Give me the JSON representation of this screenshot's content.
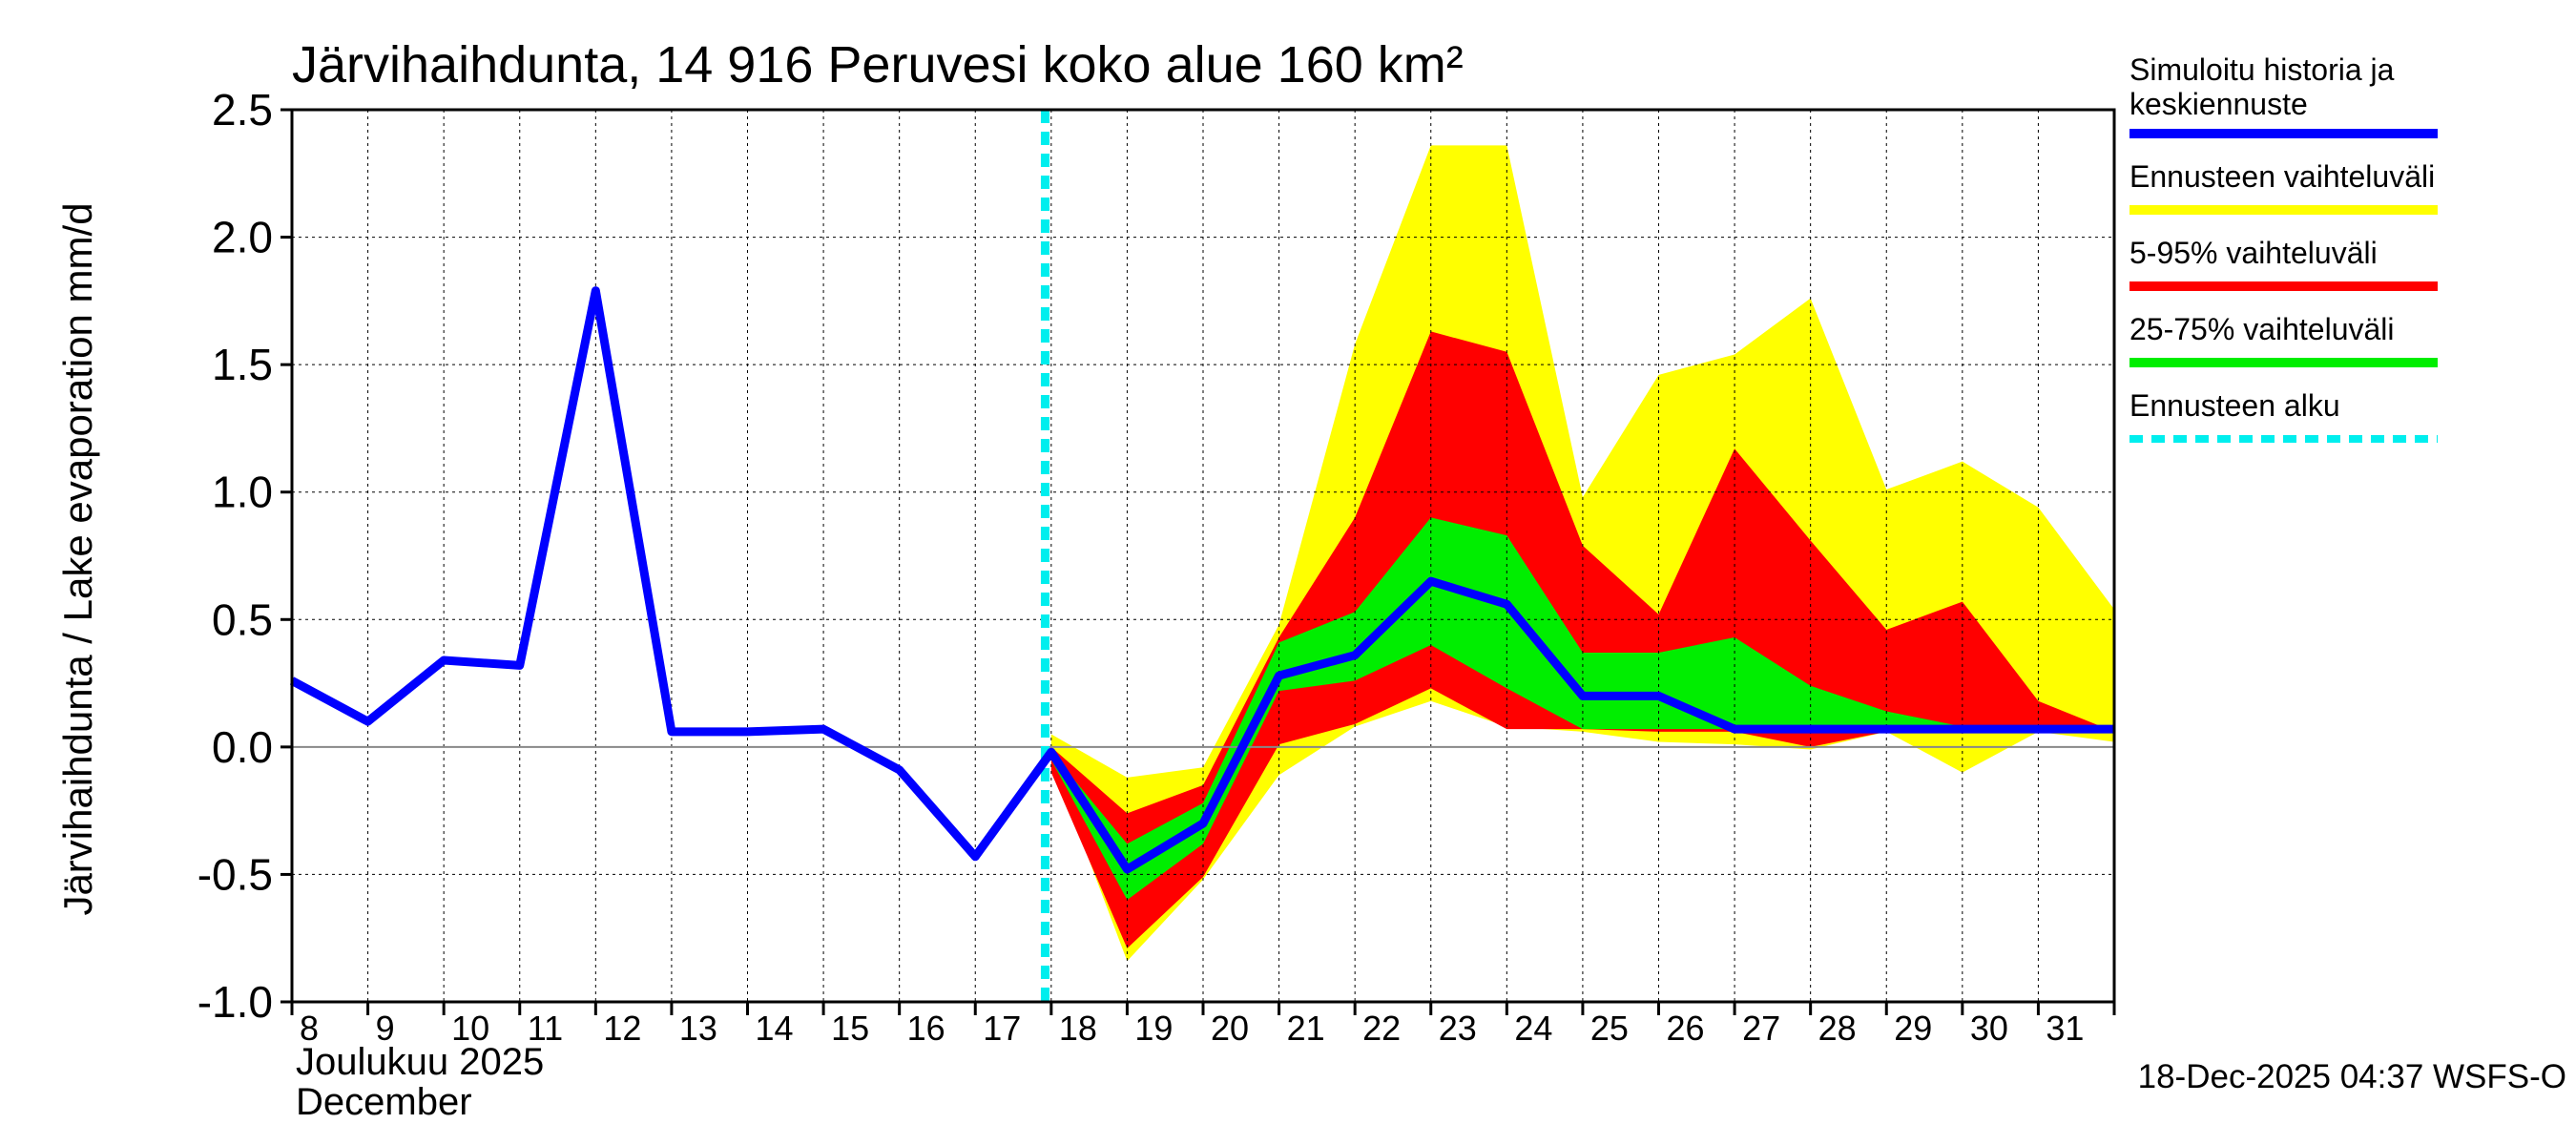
{
  "chart_data": {
    "type": "area",
    "title": "Järvihaihdunta, 14 916 Peruvesi koko alue 160 km²",
    "ylabel": "Järvihaihdunta / Lake evaporation   mm/d",
    "xlabel_fi": "Joulukuu  2025",
    "xlabel_en": "December",
    "timestamp": "18-Dec-2025 04:37 WSFS-O",
    "ylim": [
      -1.0,
      2.5
    ],
    "xlim": [
      8,
      32
    ],
    "y_ticks": [
      -1.0,
      -0.5,
      0.0,
      0.5,
      1.0,
      1.5,
      2.0,
      2.5
    ],
    "y_tick_labels": [
      "-1.0",
      "-0.5",
      "0.0",
      "0.5",
      "1.0",
      "1.5",
      "2.0",
      "2.5"
    ],
    "x_tick_labels": [
      "8",
      "9",
      "10",
      "11",
      "12",
      "13",
      "14",
      "15",
      "16",
      "17",
      "18",
      "19",
      "20",
      "21",
      "22",
      "23",
      "24",
      "25",
      "26",
      "27",
      "28",
      "29",
      "30",
      "31"
    ],
    "grid": true,
    "forecast_start": 17.92,
    "colors": {
      "history": "#0000ff",
      "full_range": "#ffff00",
      "p5_95": "#ff0000",
      "p25_75": "#00ee00",
      "forecast_start": "#00eeee"
    },
    "series": [
      {
        "name": "Simuloitu historia ja keskiennuste",
        "x": [
          8,
          9,
          10,
          11,
          12,
          13,
          14,
          15,
          16,
          17,
          18,
          19,
          20,
          21,
          22,
          23,
          24,
          25,
          26,
          27,
          28,
          29,
          30,
          31,
          32
        ],
        "values": [
          0.26,
          0.1,
          0.34,
          0.32,
          1.79,
          0.06,
          0.06,
          0.07,
          -0.09,
          -0.43,
          -0.02,
          -0.48,
          -0.3,
          0.28,
          0.36,
          0.65,
          0.56,
          0.2,
          0.2,
          0.07,
          0.07,
          0.07,
          0.07,
          0.07,
          0.07
        ]
      },
      {
        "name": "Ennusteen vaihteluväli",
        "x": [
          18,
          19,
          20,
          21,
          22,
          23,
          24,
          25,
          26,
          27,
          28,
          29,
          30,
          31,
          32
        ],
        "upper": [
          0.05,
          -0.12,
          -0.08,
          0.48,
          1.58,
          2.36,
          2.36,
          0.98,
          1.46,
          1.54,
          1.76,
          1.01,
          1.12,
          0.94,
          0.54
        ],
        "lower": [
          -0.05,
          -0.84,
          -0.52,
          -0.11,
          0.08,
          0.18,
          0.08,
          0.06,
          0.02,
          0.01,
          -0.01,
          0.06,
          -0.1,
          0.06,
          0.02
        ]
      },
      {
        "name": "5-95% vaihteluväli",
        "x": [
          18,
          19,
          20,
          21,
          22,
          23,
          24,
          25,
          26,
          27,
          28,
          29,
          30,
          31,
          32
        ],
        "upper": [
          0.0,
          -0.26,
          -0.15,
          0.43,
          0.9,
          1.63,
          1.55,
          0.79,
          0.52,
          1.17,
          0.81,
          0.46,
          0.57,
          0.18,
          0.06
        ],
        "lower": [
          -0.1,
          -0.79,
          -0.51,
          0.01,
          0.09,
          0.23,
          0.07,
          0.07,
          0.06,
          0.06,
          0.0,
          0.06,
          0.06,
          0.06,
          0.06
        ]
      },
      {
        "name": "25-75% vaihteluväli",
        "x": [
          18,
          19,
          20,
          21,
          22,
          23,
          24,
          25,
          26,
          27,
          28,
          29,
          30,
          31,
          32
        ],
        "upper": [
          -0.02,
          -0.38,
          -0.22,
          0.41,
          0.53,
          0.9,
          0.83,
          0.37,
          0.37,
          0.43,
          0.24,
          0.14,
          0.08,
          0.07,
          0.07
        ],
        "lower": [
          -0.05,
          -0.6,
          -0.38,
          0.22,
          0.26,
          0.4,
          0.23,
          0.07,
          0.07,
          0.07,
          0.07,
          0.07,
          0.07,
          0.07,
          0.07
        ]
      }
    ],
    "legend": [
      {
        "label": "Simuloitu historia ja keskiennuste",
        "color": "#0000ff",
        "style": "solid"
      },
      {
        "label": "Ennusteen vaihteluväli",
        "color": "#ffff00",
        "style": "solid"
      },
      {
        "label": "5-95% vaihteluväli",
        "color": "#ff0000",
        "style": "solid"
      },
      {
        "label": "25-75% vaihteluväli",
        "color": "#00ee00",
        "style": "solid"
      },
      {
        "label": "Ennusteen alku",
        "color": "#00eeee",
        "style": "dashed"
      }
    ]
  }
}
